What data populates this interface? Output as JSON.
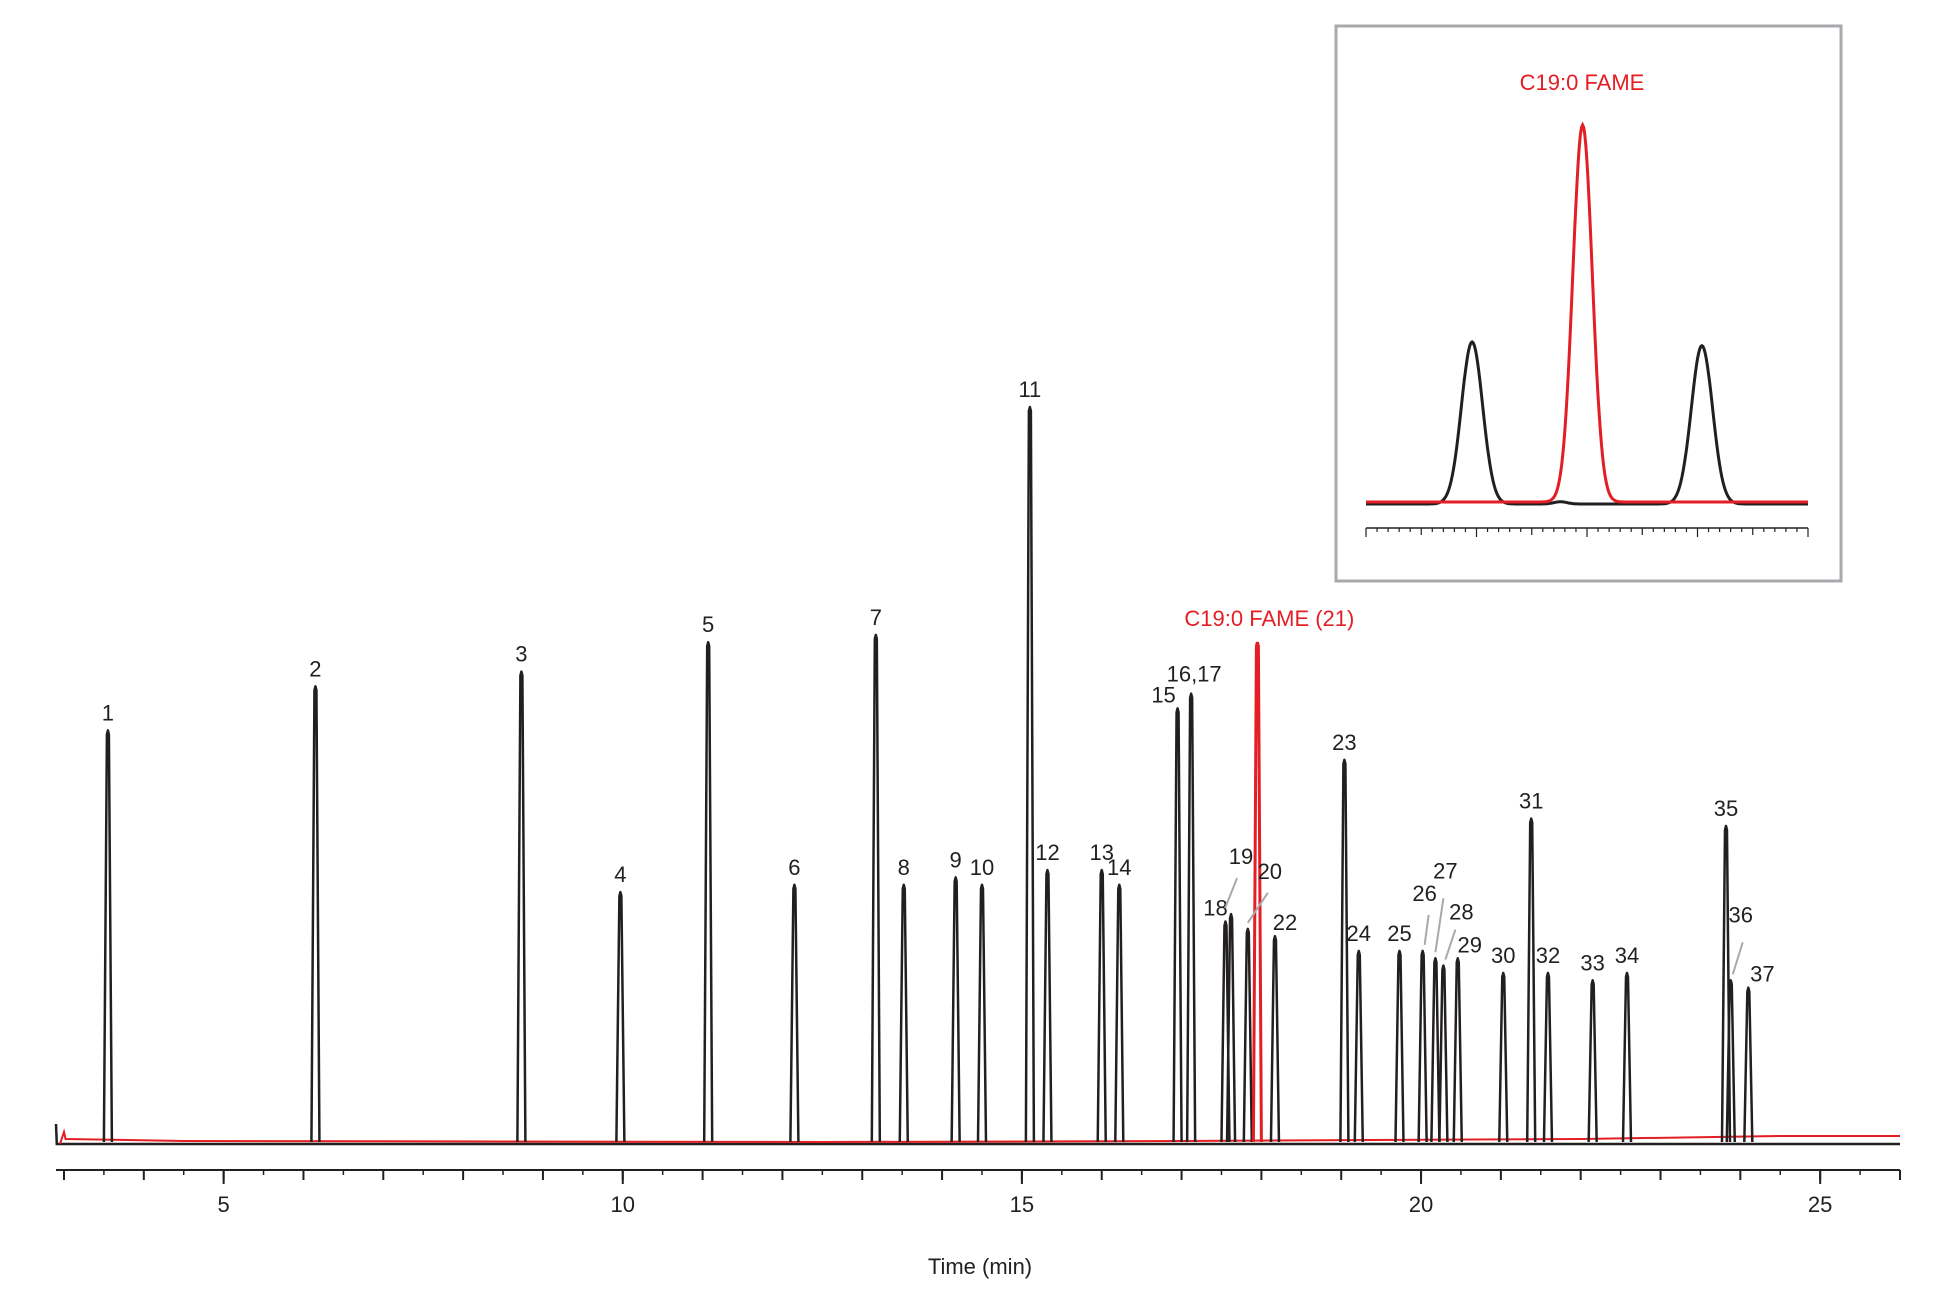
{
  "chart_data": [
    {
      "type": "line",
      "title": "",
      "xlabel": "Time (min)",
      "ylabel": "",
      "xlim": [
        2.9,
        26.0
      ],
      "x_ticks": [
        5,
        10,
        15,
        20,
        25
      ],
      "x_tick_labels": [
        "5",
        "10",
        "15",
        "20",
        "25"
      ],
      "minor_tick_step": 1,
      "grid": false,
      "colors": {
        "standard": "#231f20",
        "internal_standard": "#e31e24",
        "leader": "#a7a9ac"
      },
      "peaks": [
        {
          "label": "1",
          "x": 3.55,
          "height": 0.56
        },
        {
          "label": "2",
          "x": 6.15,
          "height": 0.62
        },
        {
          "label": "3",
          "x": 8.73,
          "height": 0.64
        },
        {
          "label": "4",
          "x": 9.97,
          "height": 0.34
        },
        {
          "label": "5",
          "x": 11.07,
          "height": 0.68
        },
        {
          "label": "6",
          "x": 12.15,
          "height": 0.35
        },
        {
          "label": "7",
          "x": 13.17,
          "height": 0.69
        },
        {
          "label": "8",
          "x": 13.52,
          "height": 0.35
        },
        {
          "label": "9",
          "x": 14.17,
          "height": 0.36
        },
        {
          "label": "10",
          "x": 14.5,
          "height": 0.35
        },
        {
          "label": "11",
          "x": 15.1,
          "height": 1.0
        },
        {
          "label": "12",
          "x": 15.32,
          "height": 0.37
        },
        {
          "label": "13",
          "x": 16.0,
          "height": 0.37
        },
        {
          "label": "14",
          "x": 16.22,
          "height": 0.35
        },
        {
          "label": "15",
          "x": 16.95,
          "height": 0.59
        },
        {
          "label": "16,17",
          "x": 17.12,
          "height": 0.61
        },
        {
          "label": "18",
          "x": 17.55,
          "height": 0.3
        },
        {
          "label": "19",
          "x": 17.62,
          "height": 0.31
        },
        {
          "label": "20",
          "x": 17.83,
          "height": 0.29
        },
        {
          "label": "22",
          "x": 18.17,
          "height": 0.28
        },
        {
          "label": "23",
          "x": 19.04,
          "height": 0.52
        },
        {
          "label": "24",
          "x": 19.22,
          "height": 0.26
        },
        {
          "label": "25",
          "x": 19.73,
          "height": 0.26
        },
        {
          "label": "26",
          "x": 20.02,
          "height": 0.26
        },
        {
          "label": "27",
          "x": 20.18,
          "height": 0.25
        },
        {
          "label": "28",
          "x": 20.28,
          "height": 0.24
        },
        {
          "label": "29",
          "x": 20.46,
          "height": 0.25
        },
        {
          "label": "30",
          "x": 21.03,
          "height": 0.23
        },
        {
          "label": "31",
          "x": 21.38,
          "height": 0.44
        },
        {
          "label": "32",
          "x": 21.59,
          "height": 0.23
        },
        {
          "label": "33",
          "x": 22.15,
          "height": 0.22
        },
        {
          "label": "34",
          "x": 22.58,
          "height": 0.23
        },
        {
          "label": "35",
          "x": 23.82,
          "height": 0.43
        },
        {
          "label": "36",
          "x": 23.88,
          "height": 0.22
        },
        {
          "label": "37",
          "x": 24.1,
          "height": 0.21
        }
      ],
      "internal_standard": {
        "label": "C19:0 FAME (21)",
        "x": 17.95,
        "height": 0.68
      }
    },
    {
      "type": "line",
      "title": "C19:0 FAME",
      "note": "inset zoom",
      "peaks": [
        {
          "series": "standard",
          "x": 0.24,
          "height": 0.43
        },
        {
          "series": "internal_standard",
          "x": 0.49,
          "height": 1.0
        },
        {
          "series": "standard",
          "x": 0.76,
          "height": 0.42
        }
      ]
    }
  ]
}
